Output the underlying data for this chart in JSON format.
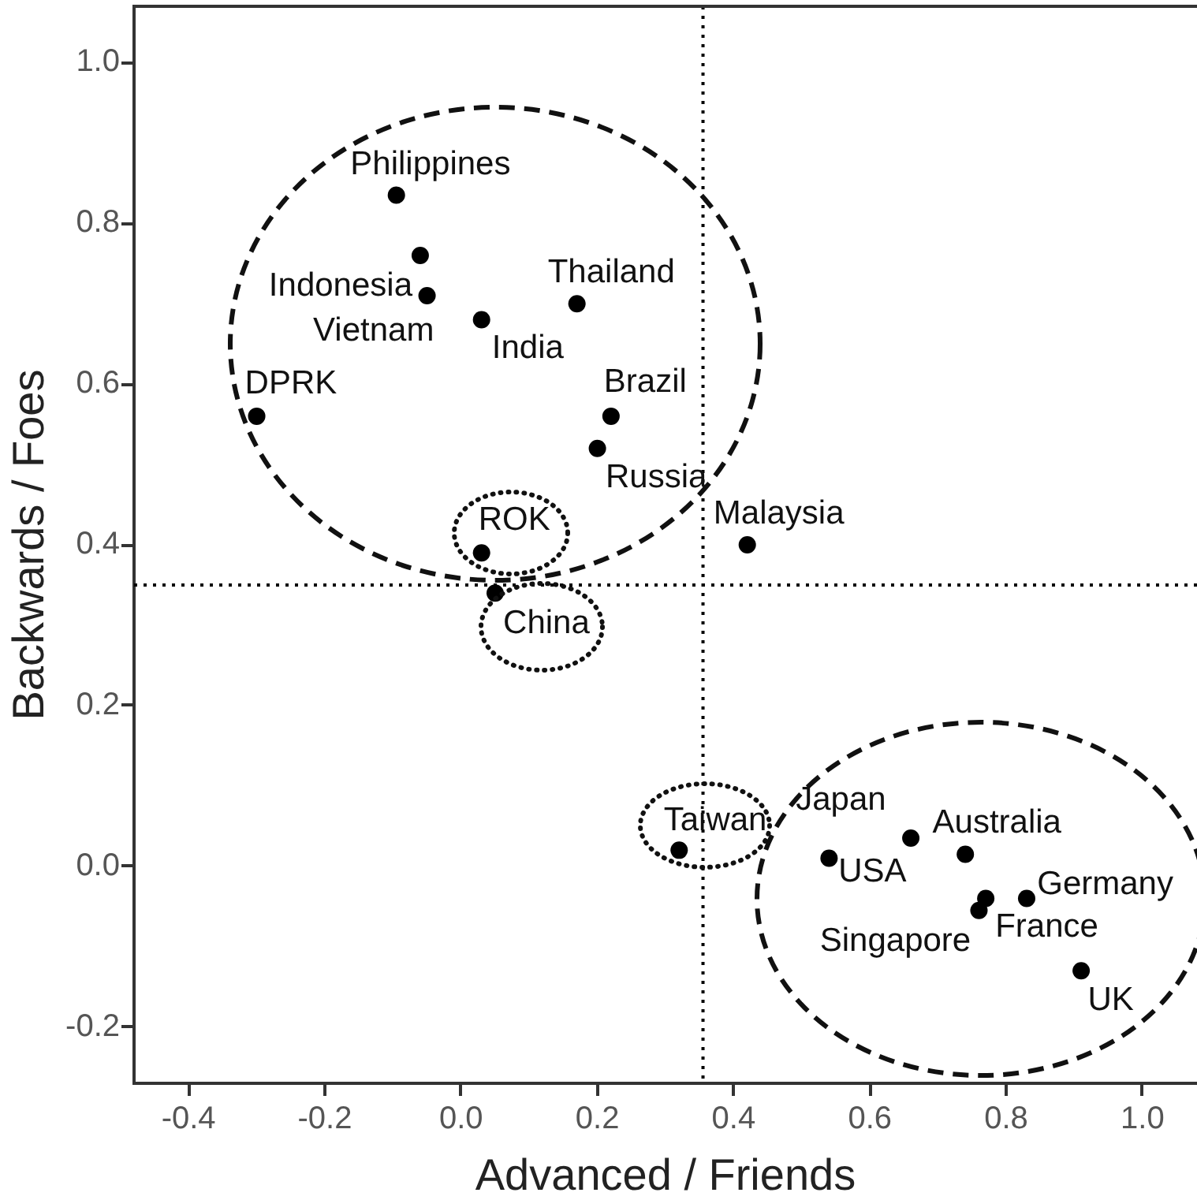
{
  "chart_data": {
    "type": "scatter",
    "xlabel": "Advanced / Friends",
    "ylabel": "Backwards / Foes",
    "xlim": [
      -0.48,
      1.08
    ],
    "ylim": [
      -0.27,
      1.07
    ],
    "xticks": [
      -0.4,
      -0.2,
      {
        "value": 0,
        "label": "0.0"
      },
      0.2,
      0.4,
      0.6,
      0.8,
      {
        "value": 1,
        "label": "1.0"
      }
    ],
    "yticks": [
      -0.2,
      {
        "value": 0,
        "label": "0.0"
      },
      0.2,
      0.4,
      0.6,
      0.8,
      {
        "value": 1,
        "label": "1.0"
      }
    ],
    "grid": false,
    "marker": "circle",
    "ref_lines": [
      {
        "axis": "x",
        "value": 0.355,
        "color": "#000000",
        "line_style": "dotted"
      },
      {
        "axis": "y",
        "value": 0.35,
        "color": "#000000",
        "line_style": "dotted"
      }
    ],
    "series": [
      {
        "name": "Philippines",
        "color": "#000000",
        "x": [
          -0.095
        ],
        "values": [
          0.835
        ]
      },
      {
        "name": "Indonesia",
        "color": "#000000",
        "x": [
          -0.06
        ],
        "values": [
          0.76
        ]
      },
      {
        "name": "Vietnam",
        "color": "#000000",
        "x": [
          -0.05
        ],
        "values": [
          0.71
        ]
      },
      {
        "name": "India",
        "color": "#000000",
        "x": [
          0.03
        ],
        "values": [
          0.68
        ]
      },
      {
        "name": "Thailand",
        "color": "#000000",
        "x": [
          0.17
        ],
        "values": [
          0.7
        ]
      },
      {
        "name": "DPRK",
        "color": "#000000",
        "x": [
          -0.3
        ],
        "values": [
          0.56
        ]
      },
      {
        "name": "Brazil",
        "color": "#000000",
        "x": [
          0.22
        ],
        "values": [
          0.56
        ]
      },
      {
        "name": "Russia",
        "color": "#000000",
        "x": [
          0.2
        ],
        "values": [
          0.52
        ]
      },
      {
        "name": "Malaysia",
        "color": "#000000",
        "x": [
          0.42
        ],
        "values": [
          0.4
        ]
      },
      {
        "name": "ROK",
        "color": "#000000",
        "x": [
          0.03
        ],
        "values": [
          0.39
        ]
      },
      {
        "name": "China",
        "color": "#000000",
        "x": [
          0.05
        ],
        "values": [
          0.34
        ]
      },
      {
        "name": "Taiwan",
        "color": "#000000",
        "x": [
          0.32
        ],
        "values": [
          0.02
        ]
      },
      {
        "name": "Japan",
        "color": "#000000",
        "x": [
          0.66
        ],
        "values": [
          0.035
        ]
      },
      {
        "name": "USA",
        "color": "#000000",
        "x": [
          0.54
        ],
        "values": [
          0.01
        ]
      },
      {
        "name": "Australia",
        "color": "#000000",
        "x": [
          0.74
        ],
        "values": [
          0.015
        ]
      },
      {
        "name": "Germany",
        "color": "#000000",
        "x": [
          0.83
        ],
        "values": [
          -0.04
        ]
      },
      {
        "name": "France",
        "color": "#000000",
        "x": [
          0.77
        ],
        "values": [
          -0.04
        ]
      },
      {
        "name": "Singapore",
        "color": "#000000",
        "x": [
          0.76
        ],
        "values": [
          -0.055
        ]
      },
      {
        "name": "UK",
        "color": "#000000",
        "x": [
          0.91
        ],
        "values": [
          -0.13
        ]
      }
    ]
  }
}
